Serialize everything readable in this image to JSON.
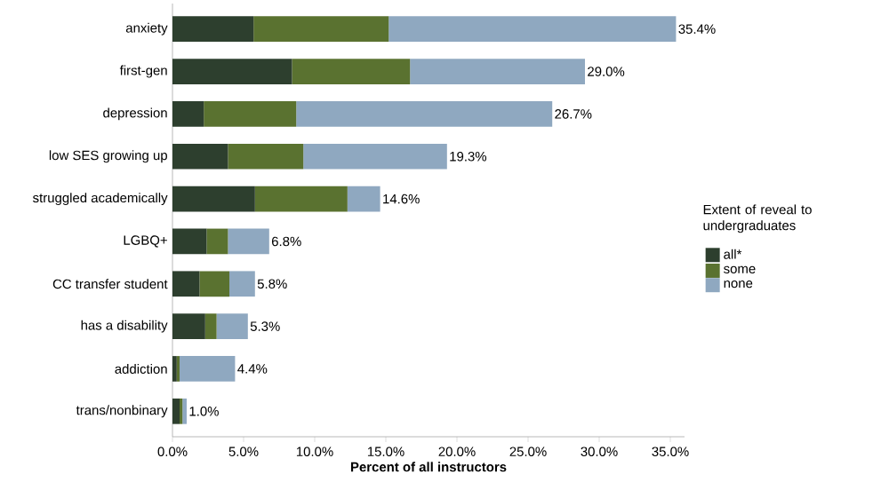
{
  "chart_data": {
    "type": "bar",
    "orientation": "horizontal",
    "stacked": true,
    "categories": [
      "anxiety",
      "first-gen",
      "depression",
      "low SES growing up",
      "struggled academically",
      "LGBQ+",
      "CC transfer student",
      "has a disability",
      "addiction",
      "trans/nonbinary"
    ],
    "series": [
      {
        "name": "all*",
        "color": "#2d3f2e",
        "values": [
          5.7,
          8.4,
          2.2,
          3.9,
          5.8,
          2.4,
          1.9,
          2.3,
          0.3,
          0.5
        ]
      },
      {
        "name": "some",
        "color": "#5a7230",
        "values": [
          9.5,
          8.3,
          6.5,
          5.3,
          6.5,
          1.5,
          2.1,
          0.8,
          0.2,
          0.2
        ]
      },
      {
        "name": "none",
        "color": "#8fa8c0",
        "values": [
          20.2,
          12.3,
          18.0,
          10.1,
          2.3,
          2.9,
          1.8,
          2.2,
          3.9,
          0.3
        ]
      }
    ],
    "totals": [
      "35.4%",
      "29.0%",
      "26.7%",
      "19.3%",
      "14.6%",
      "6.8%",
      "5.8%",
      "5.3%",
      "4.4%",
      "1.0%"
    ],
    "xlabel": "Percent of all instructors",
    "legend_title": "Extent of reveal to undergraduates",
    "legend": "right",
    "xlim": [
      0,
      36
    ],
    "xticks": [
      {
        "value": 0,
        "label": "0.0%"
      },
      {
        "value": 5,
        "label": "5.0%"
      },
      {
        "value": 10,
        "label": "10.0%"
      },
      {
        "value": 15,
        "label": "15.0%"
      },
      {
        "value": 20,
        "label": "20.0%"
      },
      {
        "value": 25,
        "label": "25.0%"
      },
      {
        "value": 30,
        "label": "30.0%"
      },
      {
        "value": 35,
        "label": "35.0%"
      }
    ]
  }
}
